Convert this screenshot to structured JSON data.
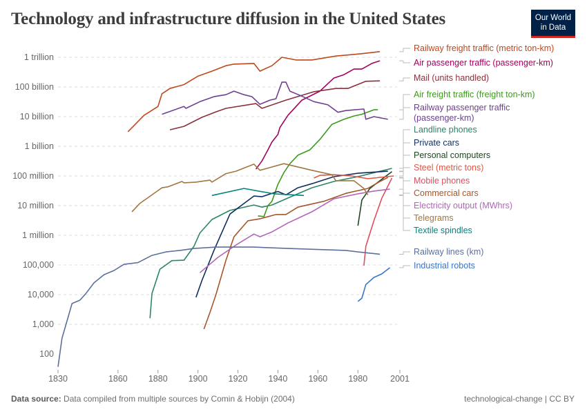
{
  "header": {
    "title": "Technology and infrastructure diffusion in the United States",
    "logo_line1": "Our World",
    "logo_line2": "in Data"
  },
  "footer": {
    "source_label": "Data source:",
    "source_text": "Data compiled from multiple sources by Comin & Hobijn (2004)",
    "right": "technological-change | CC BY"
  },
  "chart_data": {
    "type": "line",
    "y_scale": "log",
    "ylim": [
      100,
      1000000000000
    ],
    "xlim": [
      1830,
      2001
    ],
    "grid": "horizontal dashed",
    "legend": "right, labels at line ends",
    "y_ticks": [
      {
        "value": 1000000000000,
        "label": "1 trillion"
      },
      {
        "value": 100000000000,
        "label": "100 billion"
      },
      {
        "value": 10000000000,
        "label": "10 billion"
      },
      {
        "value": 1000000000,
        "label": "1 billion"
      },
      {
        "value": 100000000,
        "label": "100 million"
      },
      {
        "value": 10000000,
        "label": "10 million"
      },
      {
        "value": 1000000,
        "label": "1 million"
      },
      {
        "value": 100000,
        "label": "100,000"
      },
      {
        "value": 10000,
        "label": "10,000"
      },
      {
        "value": 1000,
        "label": "1,000"
      },
      {
        "value": 100,
        "label": "100"
      }
    ],
    "x_ticks": [
      "1830",
      "1860",
      "1880",
      "1900",
      "1920",
      "1940",
      "1960",
      "1980",
      "2001"
    ],
    "series": [
      {
        "name": "Railway freight traffic (metric ton-km)",
        "color": "#c0461c",
        "points": [
          [
            1865,
            3100000000.0
          ],
          [
            1873,
            11000000000.0
          ],
          [
            1880,
            22000000000.0
          ],
          [
            1882,
            59000000000.0
          ],
          [
            1886,
            89000000000.0
          ],
          [
            1893,
            120000000000.0
          ],
          [
            1900,
            230000000000.0
          ],
          [
            1907,
            340000000000.0
          ],
          [
            1914,
            520000000000.0
          ],
          [
            1918,
            590000000000.0
          ],
          [
            1928,
            620000000000.0
          ],
          [
            1931,
            340000000000.0
          ],
          [
            1937,
            520000000000.0
          ],
          [
            1942,
            1000000000000.0
          ],
          [
            1949,
            810000000000.0
          ],
          [
            1957,
            810000000000.0
          ],
          [
            1969,
            1100000000000.0
          ],
          [
            1981,
            1300000000000.0
          ],
          [
            1991,
            1550000000000.0
          ]
        ]
      },
      {
        "name": "Air passenger traffic (passenger-km)",
        "color": "#a2005c",
        "points": [
          [
            1929,
            170000000.0
          ],
          [
            1932,
            320000000.0
          ],
          [
            1935,
            760000000.0
          ],
          [
            1937,
            1400000000.0
          ],
          [
            1940,
            2500000000.0
          ],
          [
            1941,
            4300000000.0
          ],
          [
            1945,
            11000000000.0
          ],
          [
            1952,
            36000000000.0
          ],
          [
            1961,
            72000000000.0
          ],
          [
            1968,
            200000000000.0
          ],
          [
            1973,
            260000000000.0
          ],
          [
            1978,
            400000000000.0
          ],
          [
            1982,
            400000000000.0
          ],
          [
            1987,
            620000000000.0
          ],
          [
            1991,
            760000000000.0
          ]
        ]
      },
      {
        "name": "Mail (units handled)",
        "color": "#883039",
        "points": [
          [
            1886,
            3600000000.0
          ],
          [
            1893,
            4700000000.0
          ],
          [
            1902,
            9500000000.0
          ],
          [
            1909,
            14500000000.0
          ],
          [
            1914,
            19000000000.0
          ],
          [
            1929,
            27500000000.0
          ],
          [
            1932,
            19000000000.0
          ],
          [
            1944,
            36000000000.0
          ],
          [
            1958,
            69000000000.0
          ],
          [
            1969,
            89000000000.0
          ],
          [
            1975,
            89000000000.0
          ],
          [
            1984,
            155000000000.0
          ],
          [
            1991,
            160000000000.0
          ]
        ]
      },
      {
        "name": "Air freight traffic (freight ton-km)",
        "color": "#3c9a1a",
        "points": [
          [
            1930,
            4500000.0
          ],
          [
            1933,
            4300000.0
          ],
          [
            1935,
            10000000.0
          ],
          [
            1937,
            14000000.0
          ],
          [
            1940,
            52000000.0
          ],
          [
            1943,
            130000000.0
          ],
          [
            1946,
            260000000.0
          ],
          [
            1950,
            500000000.0
          ],
          [
            1956,
            760000000.0
          ],
          [
            1961,
            1700000000.0
          ],
          [
            1967,
            5500000000.0
          ],
          [
            1973,
            8100000000.0
          ],
          [
            1978,
            10500000000.0
          ],
          [
            1982,
            12000000000.0
          ],
          [
            1988,
            17000000000.0
          ],
          [
            1990,
            17000000000.0
          ]
        ]
      },
      {
        "name": "Railway passenger traffic (passenger-km)",
        "name_line1": "Railway passenger traffic",
        "name_line2": "(passenger-km)",
        "color": "#6d3e91",
        "points": [
          [
            1882,
            12000000000.0
          ],
          [
            1893,
            22000000000.0
          ],
          [
            1894,
            19000000000.0
          ],
          [
            1901,
            32000000000.0
          ],
          [
            1908,
            47000000000.0
          ],
          [
            1914,
            55000000000.0
          ],
          [
            1918,
            72000000000.0
          ],
          [
            1923,
            55000000000.0
          ],
          [
            1927,
            47000000000.0
          ],
          [
            1931,
            26000000000.0
          ],
          [
            1936,
            36000000000.0
          ],
          [
            1939,
            40000000000.0
          ],
          [
            1942,
            145000000000.0
          ],
          [
            1944,
            145000000000.0
          ],
          [
            1946,
            72000000000.0
          ],
          [
            1951,
            52000000000.0
          ],
          [
            1958,
            32000000000.0
          ],
          [
            1965,
            25000000000.0
          ],
          [
            1970,
            14000000000.0
          ],
          [
            1974,
            16000000000.0
          ],
          [
            1983,
            18000000000.0
          ],
          [
            1984,
            8100000000.0
          ],
          [
            1988,
            10000000000.0
          ],
          [
            1995,
            8100000000.0
          ]
        ]
      },
      {
        "name": "Landline phones",
        "color": "#2c8465",
        "points": [
          [
            1876,
            1600.0
          ],
          [
            1877,
            11000.0
          ],
          [
            1881,
            72000.0
          ],
          [
            1887,
            140000.0
          ],
          [
            1893,
            145000.0
          ],
          [
            1898,
            430000.0
          ],
          [
            1901,
            1200000.0
          ],
          [
            1907,
            3400000.0
          ],
          [
            1916,
            6900000.0
          ],
          [
            1928,
            10500000.0
          ],
          [
            1932,
            8900000.0
          ],
          [
            1937,
            10500000.0
          ],
          [
            1945,
            18000000.0
          ],
          [
            1957,
            40000000.0
          ],
          [
            1968,
            65000000.0
          ],
          [
            1980,
            95000000.0
          ],
          [
            1997,
            180000000.0
          ]
        ]
      },
      {
        "name": "Private cars",
        "color": "#0f2d5c",
        "points": [
          [
            1899,
            8100.0
          ],
          [
            1902,
            30000.0
          ],
          [
            1908,
            310000.0
          ],
          [
            1916,
            5200000.0
          ],
          [
            1922,
            10500000.0
          ],
          [
            1928,
            21000000.0
          ],
          [
            1932,
            20000000.0
          ],
          [
            1937,
            26000000.0
          ],
          [
            1940,
            30000000.0
          ],
          [
            1944,
            23000000.0
          ],
          [
            1950,
            40000000.0
          ],
          [
            1957,
            55000000.0
          ],
          [
            1968,
            95000000.0
          ],
          [
            1980,
            123000000.0
          ],
          [
            1995,
            145000000.0
          ]
        ]
      },
      {
        "name": "Personal computers",
        "color": "#1e4620",
        "points": [
          [
            1980,
            2100000.0
          ],
          [
            1982,
            15500000.0
          ],
          [
            1986,
            38000000.0
          ],
          [
            1991,
            69000000.0
          ],
          [
            1997,
            140000000.0
          ]
        ]
      },
      {
        "name": "Steel (metric tons)",
        "color": "#d85a48",
        "points": [
          [
            1958,
            85000000.0
          ],
          [
            1961,
            105000000.0
          ],
          [
            1968,
            110000000.0
          ],
          [
            1977,
            100000000.0
          ],
          [
            1985,
            81000000.0
          ],
          [
            1998,
            100000000.0
          ]
        ]
      },
      {
        "name": "Mobile phones",
        "color": "#e04e5e",
        "points": [
          [
            1983,
            95000.0
          ],
          [
            1984,
            430000.0
          ],
          [
            1988,
            3100000.0
          ],
          [
            1992,
            18000000.0
          ],
          [
            1997,
            85000000.0
          ]
        ]
      },
      {
        "name": "Commercial cars",
        "color": "#a6542a",
        "points": [
          [
            1903,
            690.0
          ],
          [
            1906,
            2500.0
          ],
          [
            1909,
            10000.0
          ],
          [
            1914,
            145000.0
          ],
          [
            1918,
            890000.0
          ],
          [
            1925,
            3100000.0
          ],
          [
            1931,
            3600000.0
          ],
          [
            1939,
            5000000.0
          ],
          [
            1944,
            5000000.0
          ],
          [
            1950,
            8900000.0
          ],
          [
            1963,
            14000000.0
          ],
          [
            1974,
            26000000.0
          ],
          [
            1985,
            38000000.0
          ],
          [
            1991,
            65000000.0
          ],
          [
            1995,
            89000000.0
          ]
        ]
      },
      {
        "name": "Electricity output (MWhrs)",
        "color": "#b065b8",
        "points": [
          [
            1901,
            55000.0
          ],
          [
            1910,
            180000.0
          ],
          [
            1919,
            470000.0
          ],
          [
            1928,
            1100000.0
          ],
          [
            1931,
            890000.0
          ],
          [
            1937,
            1300000.0
          ],
          [
            1945,
            2600000.0
          ],
          [
            1957,
            6200000.0
          ],
          [
            1968,
            17000000.0
          ],
          [
            1980,
            25000000.0
          ],
          [
            1988,
            31000000.0
          ],
          [
            1996,
            36000000.0
          ]
        ]
      },
      {
        "name": "Telegrams",
        "color": "#a1763f",
        "points": [
          [
            1867,
            6200000.0
          ],
          [
            1871,
            12000000.0
          ],
          [
            1877,
            23000000.0
          ],
          [
            1882,
            40000000.0
          ],
          [
            1885,
            43000000.0
          ],
          [
            1892,
            65000000.0
          ],
          [
            1893,
            59000000.0
          ],
          [
            1899,
            62000000.0
          ],
          [
            1906,
            72000000.0
          ],
          [
            1907,
            62000000.0
          ],
          [
            1914,
            120000000.0
          ],
          [
            1919,
            145000000.0
          ],
          [
            1928,
            250000000.0
          ],
          [
            1931,
            155000000.0
          ],
          [
            1943,
            260000000.0
          ],
          [
            1957,
            155000000.0
          ],
          [
            1967,
            110000000.0
          ],
          [
            1969,
            69000000.0
          ],
          [
            1978,
            69000000.0
          ],
          [
            1983,
            38000000.0
          ],
          [
            1985,
            23000000.0
          ]
        ]
      },
      {
        "name": "Textile spindles",
        "color": "#00847e",
        "points": [
          [
            1907,
            22000000.0
          ],
          [
            1923,
            38000000.0
          ],
          [
            1938,
            25000000.0
          ],
          [
            1953,
            22000000.0
          ]
        ]
      },
      {
        "name": "Railway lines (km)",
        "color": "#5b6f9d",
        "points": [
          [
            1830,
            37
          ],
          [
            1832,
            340
          ],
          [
            1835,
            1700.0
          ],
          [
            1837,
            5000.0
          ],
          [
            1841,
            6500.0
          ],
          [
            1844,
            11000.0
          ],
          [
            1848,
            25000.0
          ],
          [
            1853,
            47000.0
          ],
          [
            1858,
            65000.0
          ],
          [
            1863,
            105000.0
          ],
          [
            1870,
            120000.0
          ],
          [
            1877,
            210000.0
          ],
          [
            1884,
            275000.0
          ],
          [
            1891,
            310000.0
          ],
          [
            1898,
            360000.0
          ],
          [
            1909,
            400000.0
          ],
          [
            1928,
            400000.0
          ],
          [
            1945,
            360000.0
          ],
          [
            1974,
            310000.0
          ],
          [
            1980,
            275000.0
          ],
          [
            1991,
            230000.0
          ]
        ]
      },
      {
        "name": "Industrial robots",
        "color": "#3a74c4",
        "points": [
          [
            1980,
            5900.0
          ],
          [
            1982,
            7600.0
          ],
          [
            1984,
            22000.0
          ],
          [
            1988,
            38000.0
          ],
          [
            1992,
            50000.0
          ],
          [
            1996,
            81000.0
          ]
        ]
      }
    ]
  }
}
